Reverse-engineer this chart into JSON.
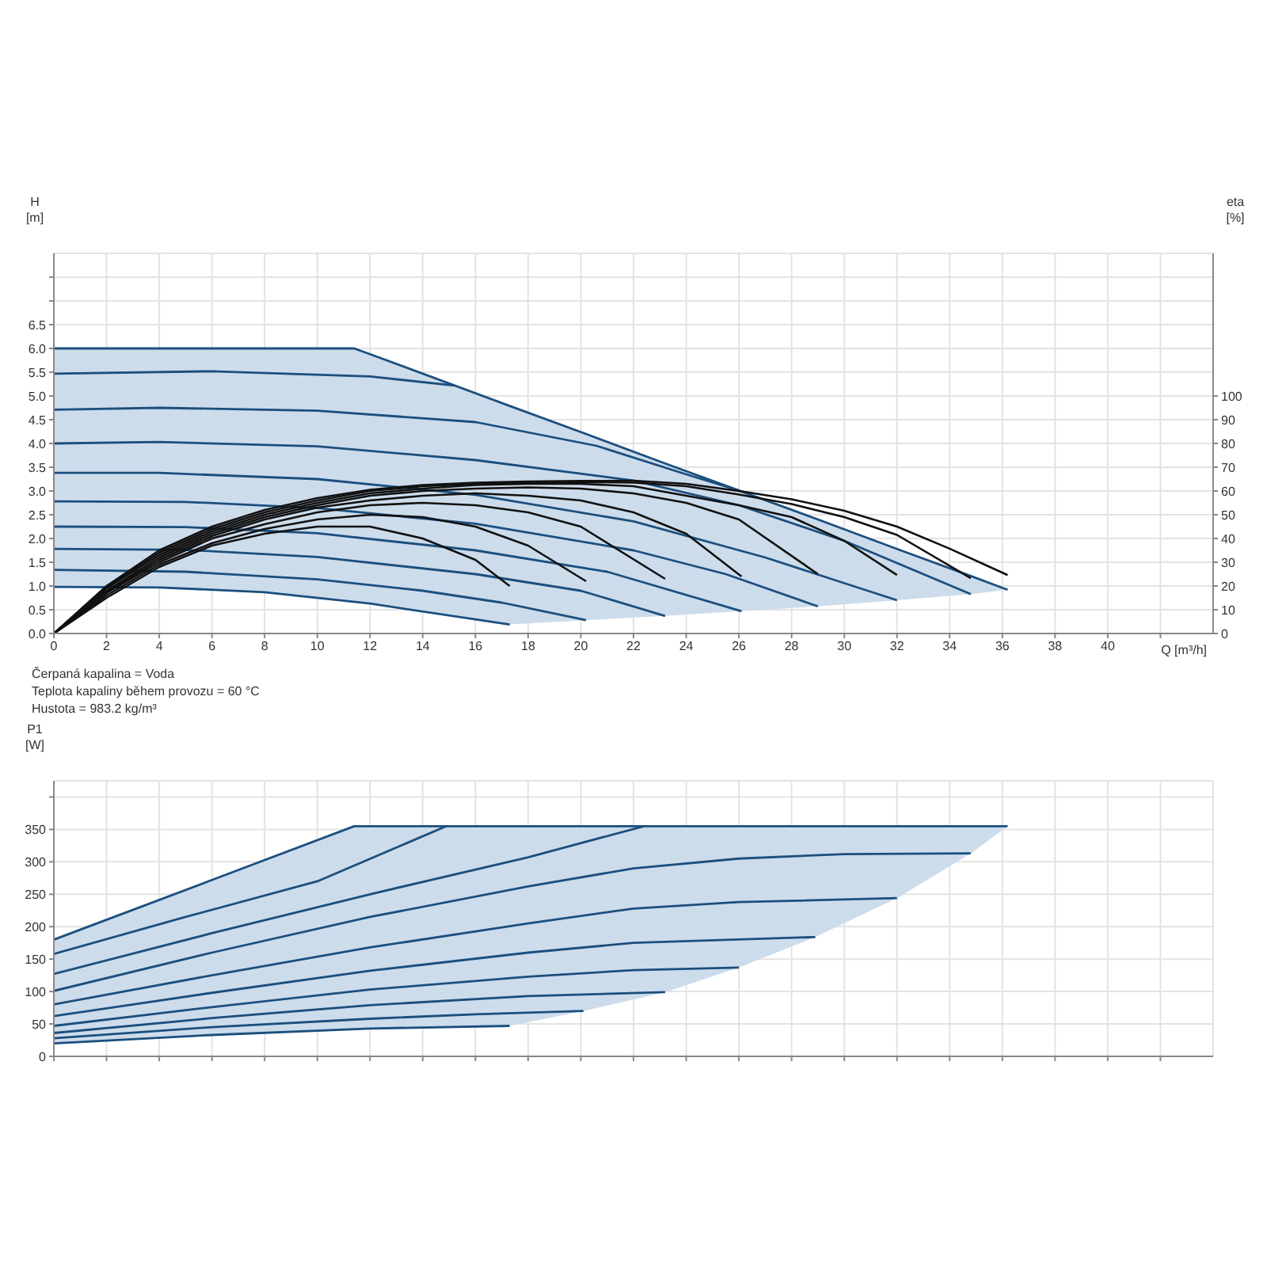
{
  "chart_data": [
    {
      "type": "line",
      "xlabel": "Q [m³/h]",
      "ylabel": "H [m]",
      "y2label": "eta [%]",
      "annotations": [
        "Čerpaná kapalina = Voda",
        "Teplota kapaliny během provozu = 60 °C",
        "Hustota = 983.2 kg/m³"
      ],
      "xlim": [
        0,
        44
      ],
      "xticks": [
        0,
        2,
        4,
        6,
        8,
        10,
        12,
        14,
        16,
        18,
        20,
        22,
        24,
        26,
        28,
        30,
        32,
        34,
        36,
        38,
        40,
        {
          "value": 42,
          "label": null
        }
      ],
      "ylim": [
        0,
        8
      ],
      "yticks": [
        {
          "value": 0,
          "label": "0.0"
        },
        0.5,
        {
          "value": 1,
          "label": "1.0"
        },
        1.5,
        {
          "value": 2,
          "label": "2.0"
        },
        2.5,
        {
          "value": 3,
          "label": "3.0"
        },
        3.5,
        {
          "value": 4,
          "label": "4.0"
        },
        4.5,
        {
          "value": 5,
          "label": "5.0"
        },
        5.5,
        {
          "value": 6,
          "label": "6.0"
        },
        6.5,
        {
          "value": 7,
          "label": null
        },
        {
          "value": 7.5,
          "label": null
        }
      ],
      "y2lim": [
        0,
        160
      ],
      "y2ticks": [
        0,
        10,
        20,
        30,
        40,
        50,
        60,
        70,
        80,
        90,
        100
      ],
      "grid": true,
      "series": [
        {
          "color": "#1b4f7e",
          "x": [
            0,
            4,
            8,
            11.4,
            12,
            17.3,
            20.2,
            23.2,
            26.1,
            29,
            32,
            34.8,
            36.2
          ],
          "values": [
            6,
            6,
            6,
            6,
            5.88,
            4.79,
            4.2,
            3.58,
            2.99,
            2.4,
            1.78,
            1.21,
            0.92
          ],
          "upper": [
            6,
            6,
            6,
            6,
            5.88,
            4.79,
            4.2,
            3.58,
            2.99,
            2.4,
            1.78,
            1.21,
            0.92
          ],
          "lower": [
            0.98,
            0.97,
            0.87,
            0.67,
            0.63,
            0.19,
            0.28,
            0.37,
            0.47,
            0.57,
            0.7,
            0.83,
            0.92
          ]
        },
        {
          "color": "#1b4f7e",
          "x": [
            0,
            6,
            12,
            15.2
          ],
          "values": [
            5.47,
            5.52,
            5.41,
            5.22
          ]
        },
        {
          "color": "#1b4f7e",
          "x": [
            0,
            4,
            10,
            16,
            20.6,
            24,
            26
          ],
          "values": [
            4.71,
            4.75,
            4.69,
            4.45,
            3.95,
            3.35,
            3.01
          ]
        },
        {
          "color": "#1b4f7e",
          "x": [
            0,
            4,
            10,
            16,
            22,
            26,
            30,
            34.8
          ],
          "values": [
            4,
            4.03,
            3.94,
            3.65,
            3.22,
            2.7,
            1.95,
            0.83
          ]
        },
        {
          "color": "#1b4f7e",
          "x": [
            0,
            4,
            10,
            16,
            22,
            27,
            32
          ],
          "values": [
            3.38,
            3.38,
            3.25,
            2.92,
            2.36,
            1.6,
            0.7
          ]
        },
        {
          "color": "#1b4f7e",
          "x": [
            0,
            5,
            10,
            16,
            22,
            25.5,
            29
          ],
          "values": [
            2.78,
            2.77,
            2.64,
            2.31,
            1.75,
            1.25,
            0.57
          ]
        },
        {
          "color": "#1b4f7e",
          "x": [
            0,
            5,
            10,
            16,
            21,
            26.1
          ],
          "values": [
            2.25,
            2.24,
            2.11,
            1.75,
            1.3,
            0.47
          ]
        },
        {
          "color": "#1b4f7e",
          "x": [
            0,
            5,
            10,
            16,
            20,
            23.2
          ],
          "values": [
            1.78,
            1.76,
            1.61,
            1.25,
            0.9,
            0.37
          ]
        },
        {
          "color": "#1b4f7e",
          "x": [
            0,
            5,
            10,
            14,
            17,
            20.2
          ],
          "values": [
            1.34,
            1.3,
            1.14,
            0.9,
            0.65,
            0.28
          ]
        },
        {
          "color": "#1b4f7e",
          "x": [
            0,
            4,
            8,
            12,
            17.3
          ],
          "values": [
            0.98,
            0.97,
            0.87,
            0.63,
            0.19
          ]
        },
        {
          "color": "#111111",
          "axis": "y2",
          "x": [
            0,
            2,
            4,
            6,
            8,
            10,
            12,
            14,
            16,
            17.3
          ],
          "values": [
            0,
            15,
            28,
            37,
            42,
            45,
            45,
            40,
            31,
            20
          ]
        },
        {
          "color": "#111111",
          "axis": "y2",
          "x": [
            0,
            2,
            4,
            6,
            8,
            10,
            12,
            14,
            16,
            18,
            20.2
          ],
          "values": [
            0,
            16,
            29,
            38,
            44,
            48,
            50,
            49,
            45,
            37,
            22
          ]
        },
        {
          "color": "#111111",
          "axis": "y2",
          "x": [
            0,
            2,
            4,
            6,
            8,
            10,
            12,
            14,
            16,
            18,
            20,
            23.2
          ],
          "values": [
            0,
            17,
            30,
            40,
            46,
            51,
            54,
            55,
            54,
            51,
            45,
            23
          ]
        },
        {
          "color": "#111111",
          "axis": "y2",
          "x": [
            0,
            2,
            4,
            6,
            8,
            10,
            12,
            14,
            16,
            18,
            20,
            22,
            24,
            26.1
          ],
          "values": [
            0,
            17.5,
            31,
            41,
            48,
            53,
            56,
            58,
            59,
            58,
            56,
            51,
            42,
            24
          ]
        },
        {
          "color": "#111111",
          "axis": "y2",
          "x": [
            0,
            2,
            4,
            6,
            8,
            10,
            12,
            14,
            16,
            18,
            20,
            22,
            24,
            26,
            29
          ],
          "values": [
            0,
            18,
            32,
            42,
            49,
            54,
            58,
            60,
            61,
            61.5,
            61,
            59,
            55,
            48,
            25
          ]
        },
        {
          "color": "#111111",
          "axis": "y2",
          "x": [
            0,
            2,
            4,
            6,
            8,
            10,
            12,
            14,
            16,
            18,
            20,
            22,
            24,
            26,
            28,
            30,
            32
          ],
          "values": [
            0,
            19,
            33,
            43,
            50,
            55,
            59,
            61,
            62.5,
            63,
            63,
            62,
            58,
            54,
            49,
            39,
            24.6
          ]
        },
        {
          "color": "#111111",
          "axis": "y2",
          "x": [
            0,
            2,
            4,
            6,
            8,
            10,
            12,
            14,
            16,
            18,
            20,
            22,
            24,
            26,
            28,
            30,
            32,
            34.8
          ],
          "values": [
            0,
            19.5,
            34,
            44,
            51,
            56,
            60,
            62,
            63,
            63.5,
            63.8,
            63.5,
            62,
            58.5,
            54.5,
            49,
            41.5,
            23.3
          ]
        },
        {
          "color": "#111111",
          "axis": "y2",
          "x": [
            0,
            2,
            4,
            6,
            8,
            10,
            12,
            14,
            16,
            18,
            20,
            22,
            24,
            26,
            28,
            30,
            32,
            34,
            36.2
          ],
          "values": [
            0,
            20,
            35,
            45,
            52,
            57,
            60.5,
            62.5,
            63.5,
            64,
            64.2,
            64.3,
            63,
            60,
            56.5,
            51.7,
            45,
            35.7,
            24.6
          ]
        }
      ]
    },
    {
      "type": "line",
      "ylabel": "P1 [W]",
      "tick_labels": "y",
      "xlim": [
        0,
        44
      ],
      "xticks": [
        0,
        2,
        4,
        6,
        8,
        10,
        12,
        14,
        16,
        18,
        20,
        22,
        24,
        26,
        28,
        30,
        32,
        34,
        36,
        38,
        40,
        42
      ],
      "ylim": [
        0,
        425
      ],
      "yticks": [
        0,
        50,
        100,
        150,
        200,
        250,
        300,
        350,
        {
          "value": 400,
          "label": null
        }
      ],
      "grid": true,
      "series": [
        {
          "color": "#1b4f7e",
          "x": [
            0,
            6,
            11.4,
            12,
            17.3,
            20.1,
            23.2,
            26,
            28.9,
            32,
            34.8,
            36.2
          ],
          "values": [
            180,
            272,
            355,
            355,
            355,
            355,
            355,
            355,
            355,
            355,
            355,
            355
          ],
          "upper": [
            180,
            272,
            355,
            355,
            355,
            355,
            355,
            355,
            355,
            355,
            355,
            355
          ],
          "lower": [
            20,
            33,
            42,
            43,
            47,
            70,
            99,
            137,
            184,
            244,
            313,
            355
          ]
        },
        {
          "color": "#1b4f7e",
          "x": [
            0,
            5,
            10,
            14.9
          ],
          "values": [
            158,
            215,
            270,
            355
          ]
        },
        {
          "color": "#1b4f7e",
          "x": [
            0,
            6,
            12,
            18,
            22.4
          ],
          "values": [
            127,
            190,
            250,
            307,
            355
          ]
        },
        {
          "color": "#1b4f7e",
          "x": [
            0,
            6,
            12,
            18,
            22,
            26,
            30,
            34.8
          ],
          "values": [
            101,
            160,
            215,
            262,
            290,
            305,
            312,
            313
          ]
        },
        {
          "color": "#1b4f7e",
          "x": [
            0,
            6,
            12,
            18,
            22,
            26,
            32
          ],
          "values": [
            80,
            125,
            168,
            205,
            228,
            238,
            244
          ]
        },
        {
          "color": "#1b4f7e",
          "x": [
            0,
            6,
            12,
            18,
            22,
            28.9
          ],
          "values": [
            62,
            98,
            132,
            160,
            175,
            184
          ]
        },
        {
          "color": "#1b4f7e",
          "x": [
            0,
            6,
            12,
            18,
            22,
            26
          ],
          "values": [
            47,
            76,
            103,
            123,
            133,
            137
          ]
        },
        {
          "color": "#1b4f7e",
          "x": [
            0,
            6,
            12,
            18,
            23.2
          ],
          "values": [
            36,
            59,
            79,
            93,
            99
          ]
        },
        {
          "color": "#1b4f7e",
          "x": [
            0,
            6,
            12,
            16,
            20.1
          ],
          "values": [
            28,
            45,
            58,
            65,
            70
          ]
        },
        {
          "color": "#1b4f7e",
          "x": [
            0,
            6,
            12,
            17.3
          ],
          "values": [
            20,
            33,
            43,
            47
          ]
        }
      ]
    }
  ]
}
